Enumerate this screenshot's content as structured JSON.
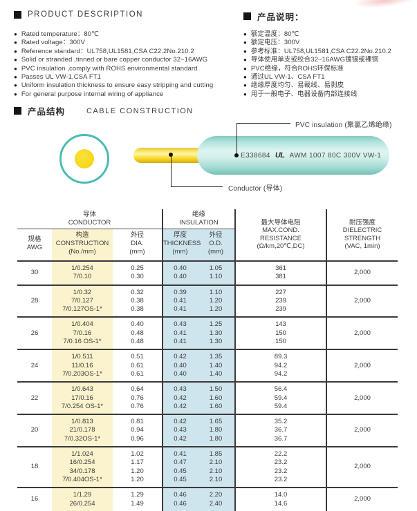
{
  "product_description": {
    "title": "PRODUCT  DESCRIPTION",
    "items": [
      "Rated temperature：80℃",
      "Rated voltage：300V",
      "Reference standard：UL758,UL1581,CSA C22.2No.210.2",
      "Solid or stranded ,tinned or bare copper conductor 32~16AWG",
      "PVC insulation ,comply with ROHS environmental standard",
      "Passes UL VW-1,CSA FT1",
      "Uniform insulation thickness to ensure easy stripping and cutting",
      "For general purpose internal wiring of appliance"
    ]
  },
  "product_notes_cn": {
    "title": "产品说明：",
    "items": [
      "额定温度：80℃",
      "额定电压：300V",
      "参考标准：UL758,UL1581,CSA C22.2No.210.2",
      "导体使用单支或绞合32~16AWG镀锡或裸铜",
      "PVC绝缘，符合ROHS环保标准",
      "通过UL VW-1、CSA FT1",
      "绝缘厚度均匀、易裁线、易剥皮",
      "用于一般电子、电器设备内部连接线"
    ]
  },
  "construction": {
    "title_cn": "产品结构",
    "title_en": "CABLE  CONSTRUCTION",
    "cable_print_cert": "E338684",
    "ul_mark": "UL",
    "cable_print_spec": "AWM 1007 80C 300V VW-1",
    "callout_insulation": "PVC insulation (聚氯乙烯绝缘)",
    "callout_conductor": "Conductor (导体)"
  },
  "spec_table": {
    "headers": {
      "group_conductor": [
        "导体",
        "CONDUCTOR"
      ],
      "group_insulation": [
        "绝缘",
        "INSULATION"
      ],
      "awg": [
        "规格",
        "AWG"
      ],
      "construction": [
        "构造",
        "CONSTRUCTION",
        "(No./mm)"
      ],
      "dia": [
        "外径",
        "DIA.",
        "(mm)"
      ],
      "thickness": [
        "厚度",
        "THICKNESS",
        "(mm)"
      ],
      "od": [
        "外径",
        "O.D.",
        "(mm)"
      ],
      "resistance": [
        "最大导体电阻",
        "MAX.COND.",
        "RESISTANCE",
        "(Ω/km,20℃,DC)"
      ],
      "dielectric": [
        "耐压强度",
        "DIELECTRIC",
        "STRENGTH",
        "(VAC, 1min)"
      ]
    },
    "rows": [
      {
        "awg": "30",
        "construction": [
          "1/0.254",
          "7/0.10"
        ],
        "dia": [
          "0.25",
          "0.30"
        ],
        "thickness": [
          "0.40",
          "0.40"
        ],
        "od": [
          "1.05",
          "1.10"
        ],
        "resistance": [
          "361",
          "381"
        ],
        "dielectric": "2,000"
      },
      {
        "awg": "28",
        "construction": [
          "1/0.32",
          "7/0.127",
          "7/0.127OS-1*"
        ],
        "dia": [
          "0.32",
          "0.38",
          "0.38"
        ],
        "thickness": [
          "0.39",
          "0.41",
          "0.41"
        ],
        "od": [
          "1.10",
          "1.20",
          "1.20"
        ],
        "resistance": [
          "227",
          "239",
          "239"
        ],
        "dielectric": "2,000"
      },
      {
        "awg": "26",
        "construction": [
          "1/0.404",
          "7/0.16",
          "7/0.16 OS-1*"
        ],
        "dia": [
          "0.40",
          "0.48",
          "0.48"
        ],
        "thickness": [
          "0.43",
          "0.41",
          "0.41"
        ],
        "od": [
          "1.25",
          "1.30",
          "1.30"
        ],
        "resistance": [
          "143",
          "150",
          "150"
        ],
        "dielectric": "2,000"
      },
      {
        "awg": "24",
        "construction": [
          "1/0.511",
          "11/0.16",
          "7/0.203OS-1*"
        ],
        "dia": [
          "0.51",
          "0.61",
          "0.61"
        ],
        "thickness": [
          "0.42",
          "0.40",
          "0.40"
        ],
        "od": [
          "1.35",
          "1.40",
          "1.40"
        ],
        "resistance": [
          "89.3",
          "94.2",
          "94.2"
        ],
        "dielectric": "2,000"
      },
      {
        "awg": "22",
        "construction": [
          "1/0.643",
          "17/0.16",
          "7/0.254 OS-1*"
        ],
        "dia": [
          "0.64",
          "0.76",
          "0.76"
        ],
        "thickness": [
          "0.43",
          "0.42",
          "0.42"
        ],
        "od": [
          "1.50",
          "1.60",
          "1.60"
        ],
        "resistance": [
          "56.4",
          "59.4",
          "59.4"
        ],
        "dielectric": "2,000"
      },
      {
        "awg": "20",
        "construction": [
          "1/0.813",
          "21/0.178",
          "7/0.32OS-1*"
        ],
        "dia": [
          "0.81",
          "0.94",
          "0.96"
        ],
        "thickness": [
          "0.42",
          "0.43",
          "0.42"
        ],
        "od": [
          "1.65",
          "1.80",
          "1.80"
        ],
        "resistance": [
          "35.2",
          "36.7",
          "36.7"
        ],
        "dielectric": "2,000"
      },
      {
        "awg": "18",
        "construction": [
          "1/1.024",
          "16/0.254",
          "34/0.178",
          "7/0.404OS-1*"
        ],
        "dia": [
          "1.02",
          "1.17",
          "1.20",
          "1.20"
        ],
        "thickness": [
          "0.41",
          "0.47",
          "0.45",
          "0.45"
        ],
        "od": [
          "1.85",
          "2.10",
          "2.10",
          "2.10"
        ],
        "resistance": [
          "22.2",
          "23.2",
          "23.2",
          "23.2"
        ],
        "dielectric": "2,000"
      },
      {
        "awg": "16",
        "construction": [
          "1/1.29",
          "26/0.254"
        ],
        "dia": [
          "1.29",
          "1.49"
        ],
        "thickness": [
          "0.46",
          "0.46"
        ],
        "od": [
          "2.20",
          "2.40"
        ],
        "resistance": [
          "14.0",
          "14.6"
        ],
        "dielectric": "2,000"
      }
    ]
  },
  "colors": {
    "jacket_teal": "#4bbcb1",
    "conductor_yellow": "#f6d20d",
    "construction_col_bg": "#fbf3cd",
    "insulation_col_bg": "#cfe5ee",
    "line": "#3a3a3a"
  }
}
